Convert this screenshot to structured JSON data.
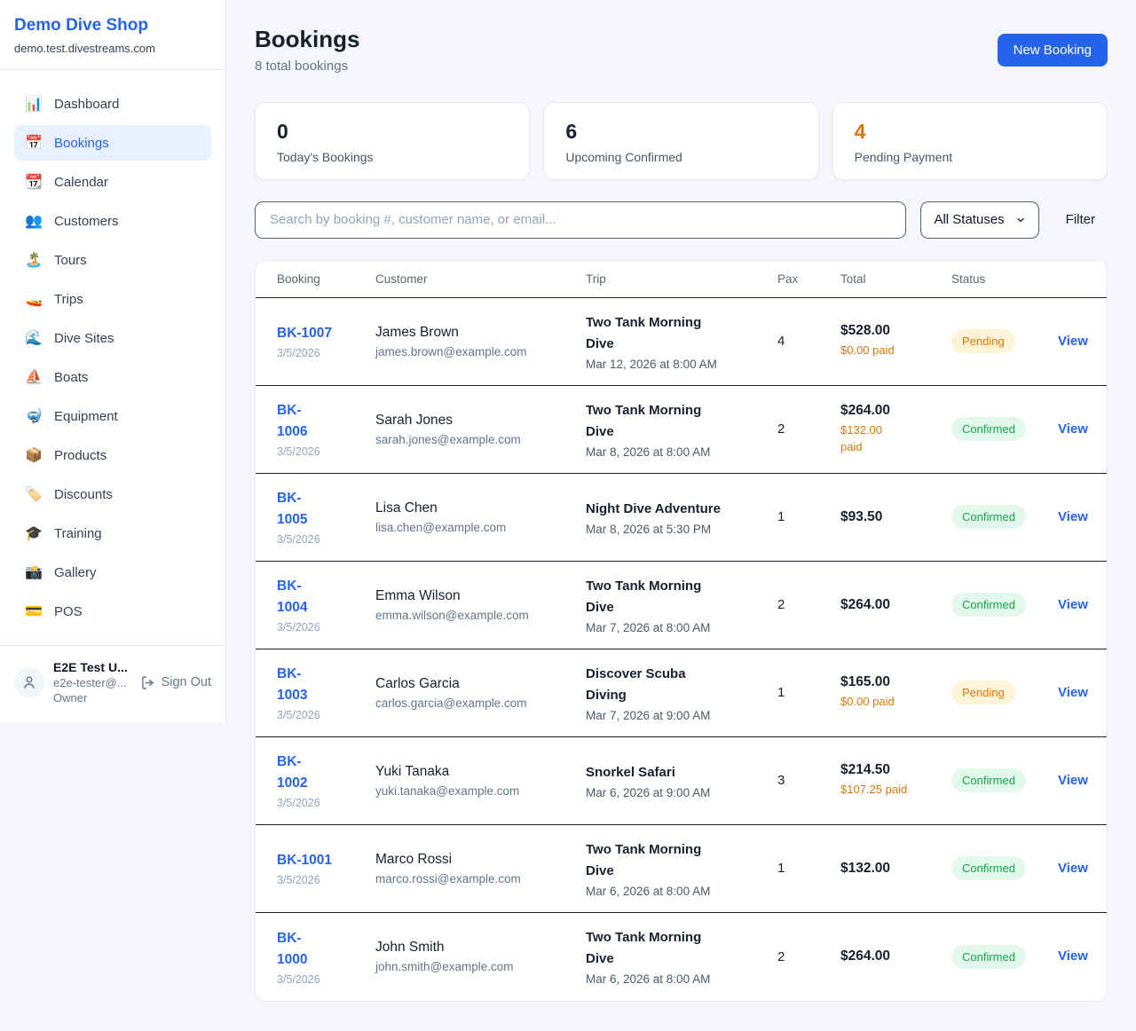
{
  "colors": {
    "accent": "#2563eb",
    "pending_orange": "#d97706",
    "confirmed_green": "#16a34a"
  },
  "sidebar": {
    "shop_name": "Demo Dive Shop",
    "shop_domain": "demo.test.divestreams.com",
    "items": [
      {
        "icon": "📊",
        "icon_name": "bar-chart-icon",
        "label": "Dashboard",
        "active": false
      },
      {
        "icon": "📅",
        "icon_name": "calendar-icon",
        "label": "Bookings",
        "active": true
      },
      {
        "icon": "📆",
        "icon_name": "tear-off-calendar-icon",
        "label": "Calendar",
        "active": false
      },
      {
        "icon": "👥",
        "icon_name": "people-icon",
        "label": "Customers",
        "active": false
      },
      {
        "icon": "🏝️",
        "icon_name": "island-icon",
        "label": "Tours",
        "active": false
      },
      {
        "icon": "🚤",
        "icon_name": "speedboat-icon",
        "label": "Trips",
        "active": false
      },
      {
        "icon": "🌊",
        "icon_name": "wave-icon",
        "label": "Dive Sites",
        "active": false
      },
      {
        "icon": "⛵",
        "icon_name": "sailboat-icon",
        "label": "Boats",
        "active": false
      },
      {
        "icon": "🤿",
        "icon_name": "dive-mask-icon",
        "label": "Equipment",
        "active": false
      },
      {
        "icon": "📦",
        "icon_name": "package-icon",
        "label": "Products",
        "active": false
      },
      {
        "icon": "🏷️",
        "icon_name": "tag-icon",
        "label": "Discounts",
        "active": false
      },
      {
        "icon": "🎓",
        "icon_name": "graduation-cap-icon",
        "label": "Training",
        "active": false
      },
      {
        "icon": "📸",
        "icon_name": "camera-icon",
        "label": "Gallery",
        "active": false
      },
      {
        "icon": "💳",
        "icon_name": "credit-card-icon",
        "label": "POS",
        "active": false
      }
    ],
    "user": {
      "name": "E2E Test U...",
      "email": "e2e-tester@...",
      "role": "Owner",
      "sign_out_label": "Sign Out"
    }
  },
  "header": {
    "title": "Bookings",
    "subtitle": "8 total bookings",
    "new_booking_label": "New Booking"
  },
  "stats": [
    {
      "value": "0",
      "label": "Today's Bookings",
      "accent": "dark"
    },
    {
      "value": "6",
      "label": "Upcoming Confirmed",
      "accent": "dark"
    },
    {
      "value": "4",
      "label": "Pending Payment",
      "accent": "orange"
    }
  ],
  "filters": {
    "search_placeholder": "Search by booking #, customer name, or email...",
    "status_selected": "All Statuses",
    "filter_label": "Filter"
  },
  "table": {
    "columns": [
      "Booking",
      "Customer",
      "Trip",
      "Pax",
      "Total",
      "Status"
    ],
    "view_label": "View",
    "rows": [
      {
        "id": "BK-1007",
        "date": "3/5/2026",
        "customer": "James Brown",
        "email": "james.brown@example.com",
        "trip": "Two Tank Morning\nDive",
        "trip_datetime": "Mar 12, 2026 at 8:00 AM",
        "pax": "4",
        "total": "$528.00",
        "paid": "$0.00 paid",
        "status": "Pending"
      },
      {
        "id": "BK-\n1006",
        "date": "3/5/2026",
        "customer": "Sarah Jones",
        "email": "sarah.jones@example.com",
        "trip": "Two Tank Morning\nDive",
        "trip_datetime": "Mar 8, 2026 at 8:00 AM",
        "pax": "2",
        "total": "$264.00",
        "paid": "$132.00\npaid",
        "status": "Confirmed"
      },
      {
        "id": "BK-\n1005",
        "date": "3/5/2026",
        "customer": "Lisa Chen",
        "email": "lisa.chen@example.com",
        "trip": "Night Dive Adventure",
        "trip_datetime": "Mar 8, 2026 at 5:30 PM",
        "pax": "1",
        "total": "$93.50",
        "paid": "",
        "status": "Confirmed"
      },
      {
        "id": "BK-\n1004",
        "date": "3/5/2026",
        "customer": "Emma Wilson",
        "email": "emma.wilson@example.com",
        "trip": "Two Tank Morning\nDive",
        "trip_datetime": "Mar 7, 2026 at 8:00 AM",
        "pax": "2",
        "total": "$264.00",
        "paid": "",
        "status": "Confirmed"
      },
      {
        "id": "BK-\n1003",
        "date": "3/5/2026",
        "customer": "Carlos Garcia",
        "email": "carlos.garcia@example.com",
        "trip": "Discover Scuba\nDiving",
        "trip_datetime": "Mar 7, 2026 at 9:00 AM",
        "pax": "1",
        "total": "$165.00",
        "paid": "$0.00 paid",
        "status": "Pending"
      },
      {
        "id": "BK-\n1002",
        "date": "3/5/2026",
        "customer": "Yuki Tanaka",
        "email": "yuki.tanaka@example.com",
        "trip": "Snorkel Safari",
        "trip_datetime": "Mar 6, 2026 at 9:00 AM",
        "pax": "3",
        "total": "$214.50",
        "paid": "$107.25 paid",
        "status": "Confirmed"
      },
      {
        "id": "BK-1001",
        "date": "3/5/2026",
        "customer": "Marco Rossi",
        "email": "marco.rossi@example.com",
        "trip": "Two Tank Morning\nDive",
        "trip_datetime": "Mar 6, 2026 at 8:00 AM",
        "pax": "1",
        "total": "$132.00",
        "paid": "",
        "status": "Confirmed"
      },
      {
        "id": "BK-\n1000",
        "date": "3/5/2026",
        "customer": "John Smith",
        "email": "john.smith@example.com",
        "trip": "Two Tank Morning\nDive",
        "trip_datetime": "Mar 6, 2026 at 8:00 AM",
        "pax": "2",
        "total": "$264.00",
        "paid": "",
        "status": "Confirmed"
      }
    ]
  }
}
